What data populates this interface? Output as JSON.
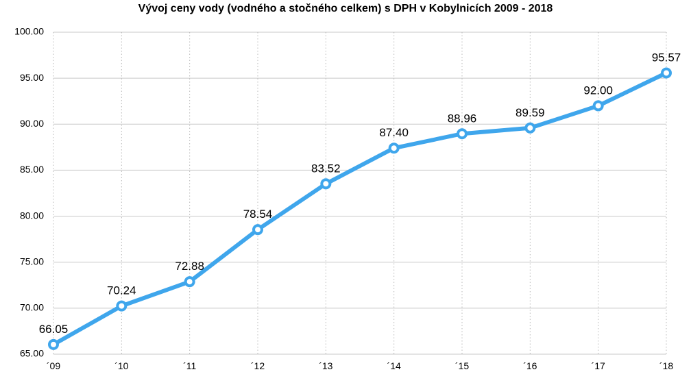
{
  "chart_data": {
    "type": "line",
    "title": "Vývoj ceny vody (vodného a stočného celkem) s DPH v Kobylnicích 2009 - 2018",
    "xlabel": "",
    "ylabel": "",
    "categories": [
      "´09",
      "´10",
      "´11",
      "´12",
      "´13",
      "´14",
      "´15",
      "´16",
      "´17",
      "´18"
    ],
    "series": [
      {
        "values": [
          66.05,
          70.24,
          72.88,
          78.54,
          83.52,
          87.4,
          88.96,
          89.59,
          92.0,
          95.57
        ],
        "labels": [
          "66.05",
          "70.24",
          "72.88",
          "78.54",
          "83.52",
          "87.40",
          "88.96",
          "89.59",
          "92.00",
          "95.57"
        ]
      }
    ],
    "ylim": [
      65,
      100
    ],
    "yticks": [
      "65.00",
      "70.00",
      "75.00",
      "80.00",
      "85.00",
      "90.00",
      "95.00",
      "100.00"
    ],
    "grid": true,
    "legend": "none",
    "colors": {
      "line": "#3fa6ec",
      "grid": "#c8c8c8",
      "vgrid": "#b8b8b8"
    }
  }
}
